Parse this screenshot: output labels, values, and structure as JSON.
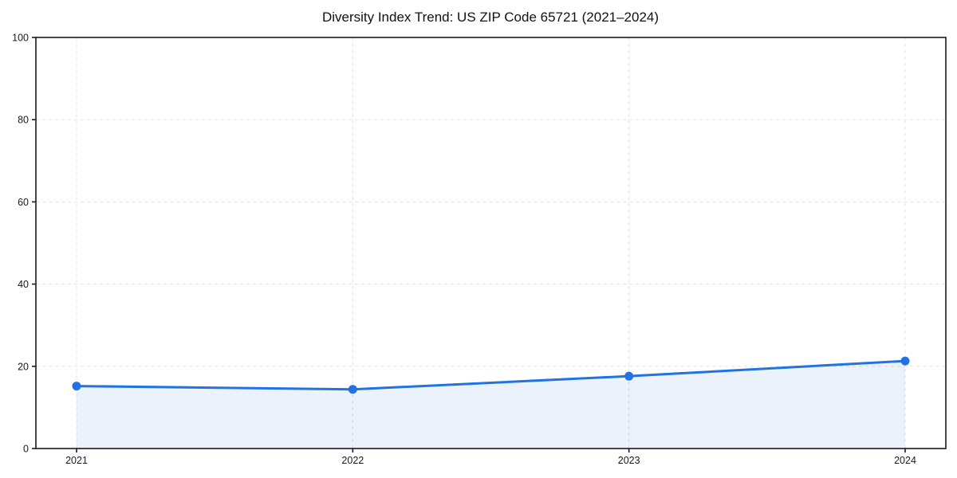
{
  "chart_data": {
    "type": "area",
    "title": "Diversity Index Trend: US ZIP Code 65721 (2021–2024)",
    "categories": [
      "2021",
      "2022",
      "2023",
      "2024"
    ],
    "x": [
      2021,
      2022,
      2023,
      2024
    ],
    "series": [
      {
        "name": "Diversity Index",
        "values": [
          15.2,
          14.4,
          17.6,
          21.3
        ]
      }
    ],
    "xlabel": "",
    "ylabel": "",
    "ylim": [
      0,
      100
    ],
    "yticks": [
      0,
      20,
      40,
      60,
      80,
      100
    ],
    "grid": true,
    "grid_style": "dashed",
    "legend": "none",
    "colors": {
      "line": "#2173e3",
      "marker": "#2173e3",
      "fill": "#2173e3",
      "fill_opacity": 0.09,
      "grid": "#e3e3e3",
      "spine": "#1a1a1a",
      "background": "#ffffff"
    }
  }
}
